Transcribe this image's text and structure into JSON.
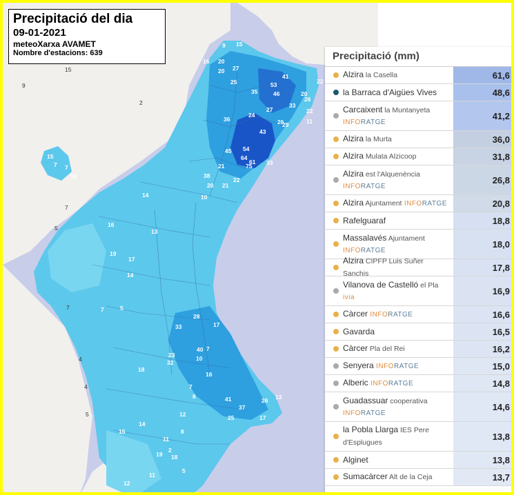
{
  "title": {
    "heading": "Precipitació del dia",
    "date": "09-01-2021",
    "network": "meteoXarxa AVAMET",
    "stations": "Nombre d'estacions: 639"
  },
  "panel": {
    "header": "Precipitació (mm)",
    "rows": [
      {
        "name": "Alzira",
        "sub": "la Casella",
        "brand": "",
        "value": "61,6",
        "dot": "#e8b24a",
        "bg": "#9fb8e8"
      },
      {
        "name": "la Barraca d'Aigües Vives",
        "sub": "",
        "brand": "",
        "value": "48,6",
        "dot": "#1d5a6e",
        "bg": "#a9c0ec"
      },
      {
        "name": "Carcaixent",
        "sub": "la Muntanyeta",
        "brand": "INFORATGE",
        "value": "41,2",
        "dot": "#aaaaaa",
        "bg": "#b3c7ee"
      },
      {
        "name": "Alzira",
        "sub": "la Murta",
        "brand": "",
        "value": "36,0",
        "dot": "#e8b24a",
        "bg": "#c4d0e2"
      },
      {
        "name": "Alzira",
        "sub": "Mulata Alzicoop",
        "brand": "",
        "value": "31,8",
        "dot": "#e8b24a",
        "bg": "#c8d3e4"
      },
      {
        "name": "Alzira",
        "sub": "est l'Alquenència",
        "brand": "INFORATGE",
        "value": "26,8",
        "dot": "#aaaaaa",
        "bg": "#ccd7e6"
      },
      {
        "name": "Alzira",
        "sub": "Ajuntament",
        "brand": "INFORATGE",
        "value": "20,8",
        "dot": "#e8b24a",
        "bg": "#d0dae8"
      },
      {
        "name": "Rafelguaraf",
        "sub": "",
        "brand": "",
        "value": "18,8",
        "dot": "#e8b24a",
        "bg": "#d6e0f2"
      },
      {
        "name": "Massalavés",
        "sub": "Ajuntament",
        "brand": "INFORATGE",
        "value": "18,0",
        "dot": "#e8b24a",
        "bg": "#d8e1f2"
      },
      {
        "name": "Alzira",
        "sub": "CIPFP Luis Suñer Sanchis",
        "brand": "",
        "value": "17,8",
        "dot": "#e8b24a",
        "bg": "#d9e2f3"
      },
      {
        "name": "Vilanova de Castelló",
        "sub": "el Pla",
        "brand": "ivia",
        "value": "16,9",
        "dot": "#aaaaaa",
        "bg": "#dbe3f3"
      },
      {
        "name": "Càrcer",
        "sub": "",
        "brand": "INFORATGE",
        "value": "16,6",
        "dot": "#e8b24a",
        "bg": "#dce4f4"
      },
      {
        "name": "Gavarda",
        "sub": "",
        "brand": "",
        "value": "16,5",
        "dot": "#e8b24a",
        "bg": "#dce4f4"
      },
      {
        "name": "Càrcer",
        "sub": "Pla del Rei",
        "brand": "",
        "value": "16,2",
        "dot": "#e8b24a",
        "bg": "#dde5f4"
      },
      {
        "name": "Senyera",
        "sub": "",
        "brand": "INFORATGE",
        "value": "15,0",
        "dot": "#aaaaaa",
        "bg": "#dfe6f4"
      },
      {
        "name": "Alberic",
        "sub": "",
        "brand": "INFORATGE",
        "value": "14,8",
        "dot": "#aaaaaa",
        "bg": "#dfe6f4"
      },
      {
        "name": "Guadassuar",
        "sub": "cooperativa",
        "brand": "INFORATGE",
        "value": "14,6",
        "dot": "#aaaaaa",
        "bg": "#e0e7f5"
      },
      {
        "name": "la Pobla Llarga",
        "sub": "IES Pere d'Esplugues",
        "brand": "",
        "value": "13,8",
        "dot": "#e8b24a",
        "bg": "#e1e8f5"
      },
      {
        "name": "Alginet",
        "sub": "",
        "brand": "",
        "value": "13,8",
        "dot": "#e8b24a",
        "bg": "#e1e8f5"
      },
      {
        "name": "Sumacàrcer",
        "sub": "Alt de la Ceja",
        "brand": "",
        "value": "13,7",
        "dot": "#e8b24a",
        "bg": "#e2e9f5"
      }
    ]
  },
  "map_labels": {
    "region": [
      "9",
      "15",
      "20",
      "27",
      "16",
      "36",
      "20",
      "35",
      "25",
      "53",
      "41",
      "22",
      "46",
      "20",
      "26",
      "33",
      "27",
      "22",
      "11",
      "26",
      "43",
      "29",
      "24",
      "54",
      "64",
      "75",
      "61",
      "33",
      "45",
      "21",
      "38",
      "20",
      "21",
      "22",
      "10",
      "14",
      "16",
      "19",
      "13",
      "14",
      "17",
      "5",
      "7",
      "18",
      "33",
      "28",
      "23",
      "17",
      "41",
      "32",
      "25",
      "14",
      "12",
      "7",
      "8",
      "15",
      "11",
      "8",
      "19",
      "18",
      "11",
      "12",
      "16",
      "37",
      "26",
      "13",
      "17",
      "40",
      "10",
      "7",
      "2",
      "5"
    ],
    "outside": [
      "15",
      "9",
      "2",
      "15",
      "7",
      "10",
      "7",
      "7",
      "5",
      "7",
      "4",
      "4",
      "5"
    ]
  },
  "colors": {
    "sea": "#c8cdea",
    "land_outside": "#f2f0ed",
    "precip_light": "#5cc8ec",
    "precip_mid": "#2e9fdf",
    "precip_heavy": "#1a55c8",
    "frame": "#ffff00"
  }
}
